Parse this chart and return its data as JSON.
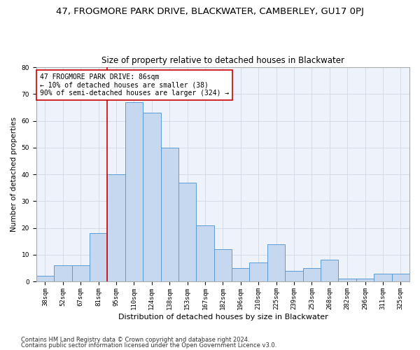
{
  "title": "47, FROGMORE PARK DRIVE, BLACKWATER, CAMBERLEY, GU17 0PJ",
  "subtitle": "Size of property relative to detached houses in Blackwater",
  "xlabel": "Distribution of detached houses by size in Blackwater",
  "ylabel": "Number of detached properties",
  "categories": [
    "38sqm",
    "52sqm",
    "67sqm",
    "81sqm",
    "95sqm",
    "110sqm",
    "124sqm",
    "138sqm",
    "153sqm",
    "167sqm",
    "182sqm",
    "196sqm",
    "210sqm",
    "225sqm",
    "239sqm",
    "253sqm",
    "268sqm",
    "282sqm",
    "296sqm",
    "311sqm",
    "325sqm"
  ],
  "values": [
    2,
    6,
    6,
    18,
    40,
    67,
    63,
    50,
    37,
    21,
    12,
    5,
    7,
    14,
    4,
    5,
    8,
    1,
    1,
    3,
    3
  ],
  "bar_color": "#c5d8f0",
  "bar_edge_color": "#5b9bd5",
  "bar_linewidth": 0.7,
  "vline_x": 3.5,
  "vline_color": "#cc0000",
  "vline_linewidth": 1.2,
  "annotation_text": "47 FROGMORE PARK DRIVE: 86sqm\n← 10% of detached houses are smaller (38)\n90% of semi-detached houses are larger (324) →",
  "annotation_box_color": "#ffffff",
  "annotation_box_edgecolor": "#cc0000",
  "ylim": [
    0,
    80
  ],
  "yticks": [
    0,
    10,
    20,
    30,
    40,
    50,
    60,
    70,
    80
  ],
  "grid_color": "#d0d8e8",
  "bg_color": "#eef2fa",
  "footer1": "Contains HM Land Registry data © Crown copyright and database right 2024.",
  "footer2": "Contains public sector information licensed under the Open Government Licence v3.0.",
  "title_fontsize": 9.5,
  "subtitle_fontsize": 8.5,
  "xlabel_fontsize": 8,
  "ylabel_fontsize": 7.5,
  "tick_fontsize": 6.5,
  "annotation_fontsize": 7,
  "footer_fontsize": 6
}
